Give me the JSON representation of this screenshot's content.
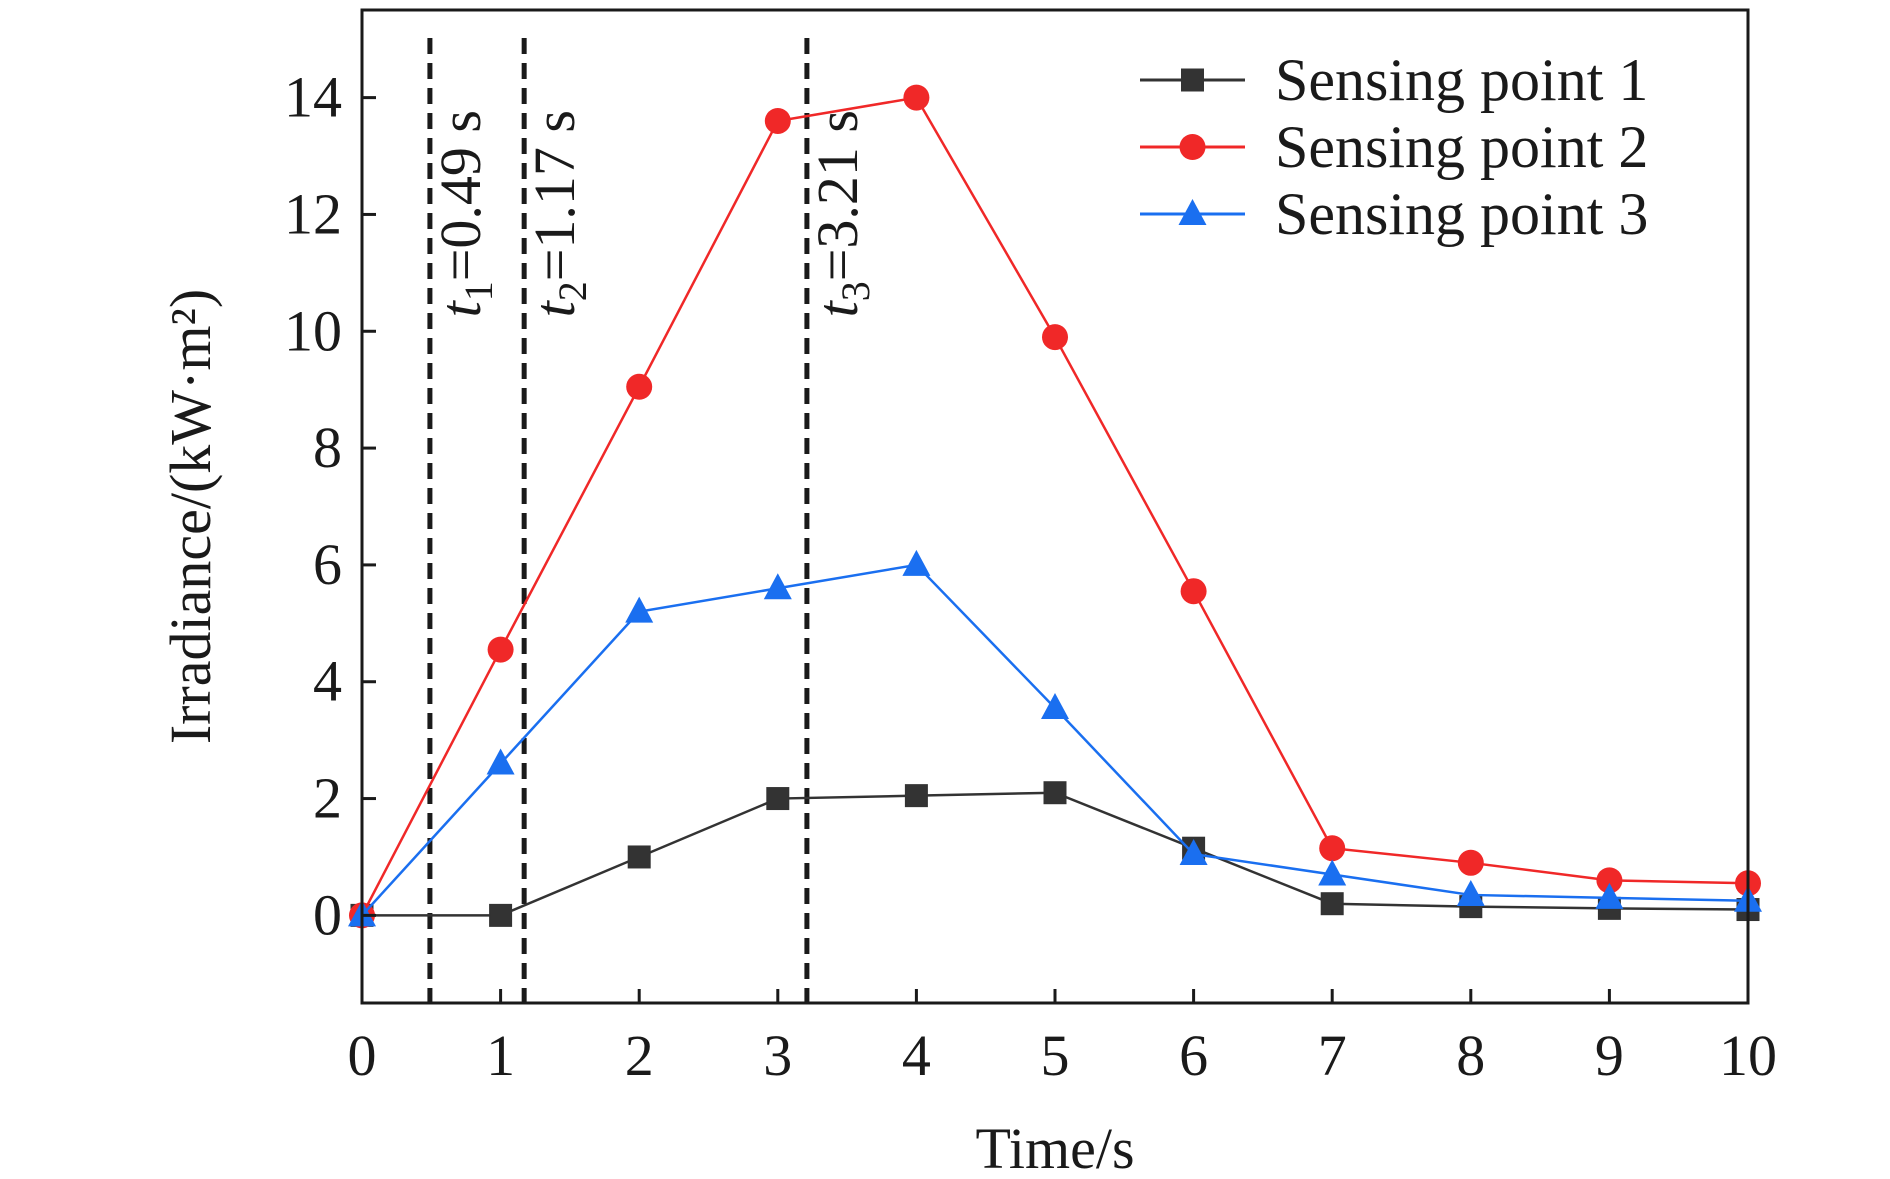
{
  "chart_data": {
    "type": "line",
    "title": "",
    "xlabel": "Time/s",
    "ylabel": "Irradiance/(kW·m²)",
    "xlim": [
      0,
      10
    ],
    "ylim": [
      -1.5,
      15.5
    ],
    "x_ticks": [
      "0",
      "1",
      "2",
      "3",
      "4",
      "5",
      "6",
      "7",
      "8",
      "9",
      "10"
    ],
    "y_ticks": [
      "0",
      "2",
      "4",
      "6",
      "8",
      "10",
      "12",
      "14"
    ],
    "grid": false,
    "legend_position": "top-right",
    "x": [
      0,
      1,
      2,
      3,
      4,
      5,
      6,
      7,
      8,
      9,
      10
    ],
    "series": [
      {
        "name": "Sensing point 1",
        "marker": "square",
        "color": "#333333",
        "values": [
          0,
          0,
          1.0,
          2.0,
          2.05,
          2.1,
          1.15,
          0.2,
          0.15,
          0.12,
          0.1
        ]
      },
      {
        "name": "Sensing point 2",
        "marker": "circle",
        "color": "#f02828",
        "values": [
          0,
          4.55,
          9.05,
          13.6,
          14.0,
          9.9,
          5.55,
          1.15,
          0.9,
          0.6,
          0.55
        ]
      },
      {
        "name": "Sensing point 3",
        "marker": "triangle",
        "color": "#1a6ff0",
        "values": [
          0,
          2.6,
          5.2,
          5.6,
          6.0,
          3.55,
          1.05,
          0.7,
          0.35,
          0.3,
          0.25
        ]
      }
    ],
    "vlines": [
      {
        "x": 0.49,
        "label_var": "t",
        "label_sub": "1",
        "label_rest": "=0.49 s"
      },
      {
        "x": 1.17,
        "label_var": "t",
        "label_sub": "2",
        "label_rest": "=1.17 s"
      },
      {
        "x": 3.21,
        "label_var": "t",
        "label_sub": "3",
        "label_rest": "=3.21 s"
      }
    ]
  }
}
